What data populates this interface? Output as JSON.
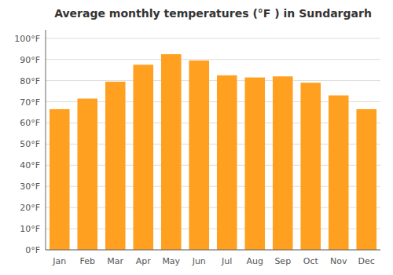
{
  "chart_data": {
    "type": "bar",
    "title": "Average monthly temperatures (°F ) in Sundargarh",
    "categories": [
      "Jan",
      "Feb",
      "Mar",
      "Apr",
      "May",
      "Jun",
      "Jul",
      "Aug",
      "Sep",
      "Oct",
      "Nov",
      "Dec"
    ],
    "values": [
      66.5,
      71.5,
      79.5,
      87.5,
      92.5,
      89.5,
      82.5,
      81.5,
      82,
      79,
      73,
      66.5
    ],
    "color": "#FFA020",
    "ylim": [
      0,
      104
    ],
    "yticks": [
      {
        "value": 0,
        "label": "0°F"
      },
      {
        "value": 10,
        "label": "10°F"
      },
      {
        "value": 20,
        "label": "20°F"
      },
      {
        "value": 30,
        "label": "30°F"
      },
      {
        "value": 40,
        "label": "40°F"
      },
      {
        "value": 50,
        "label": "50°F"
      },
      {
        "value": 60,
        "label": "60°F"
      },
      {
        "value": 70,
        "label": "70°F"
      },
      {
        "value": 80,
        "label": "80°F"
      },
      {
        "value": 90,
        "label": "90°F"
      },
      {
        "value": 100,
        "label": "100°F"
      }
    ],
    "grid": true
  }
}
